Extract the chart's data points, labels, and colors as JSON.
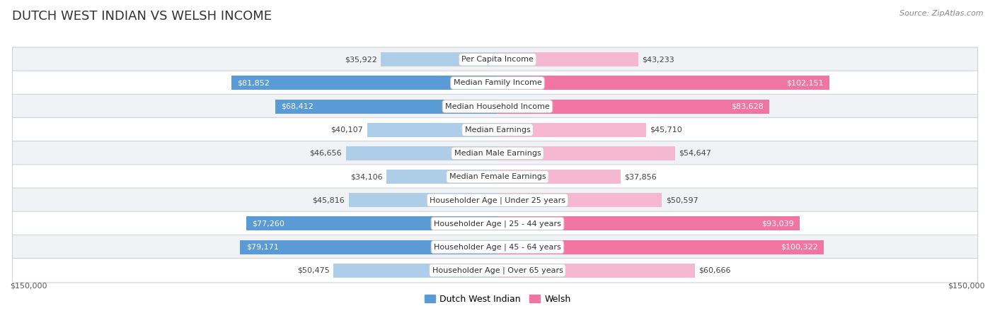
{
  "title": "DUTCH WEST INDIAN VS WELSH INCOME",
  "source": "Source: ZipAtlas.com",
  "categories": [
    "Per Capita Income",
    "Median Family Income",
    "Median Household Income",
    "Median Earnings",
    "Median Male Earnings",
    "Median Female Earnings",
    "Householder Age | Under 25 years",
    "Householder Age | 25 - 44 years",
    "Householder Age | 45 - 64 years",
    "Householder Age | Over 65 years"
  ],
  "dutch_values": [
    35922,
    81852,
    68412,
    40107,
    46656,
    34106,
    45816,
    77260,
    79171,
    50475
  ],
  "welsh_values": [
    43233,
    102151,
    83628,
    45710,
    54647,
    37856,
    50597,
    93039,
    100322,
    60666
  ],
  "dutch_labels": [
    "$35,922",
    "$81,852",
    "$68,412",
    "$40,107",
    "$46,656",
    "$34,106",
    "$45,816",
    "$77,260",
    "$79,171",
    "$50,475"
  ],
  "welsh_labels": [
    "$43,233",
    "$102,151",
    "$83,628",
    "$45,710",
    "$54,647",
    "$37,856",
    "$50,597",
    "$93,039",
    "$100,322",
    "$60,666"
  ],
  "max_value": 150000,
  "dutch_color_strong": "#5b9bd5",
  "dutch_color_light": "#aecde8",
  "welsh_color_strong": "#f075a0",
  "welsh_color_light": "#f5b8d0",
  "strong_threshold_dutch": 65000,
  "strong_threshold_welsh": 65000,
  "bg_color": "#ffffff",
  "row_bg_odd": "#f0f2f5",
  "row_bg_even": "#ffffff",
  "row_border_color": "#d0d4da",
  "legend_dutch": "Dutch West Indian",
  "legend_welsh": "Welsh",
  "xlabel_left": "$150,000",
  "xlabel_right": "$150,000",
  "title_fontsize": 13,
  "source_fontsize": 8,
  "legend_fontsize": 9,
  "category_fontsize": 8,
  "value_fontsize": 8
}
